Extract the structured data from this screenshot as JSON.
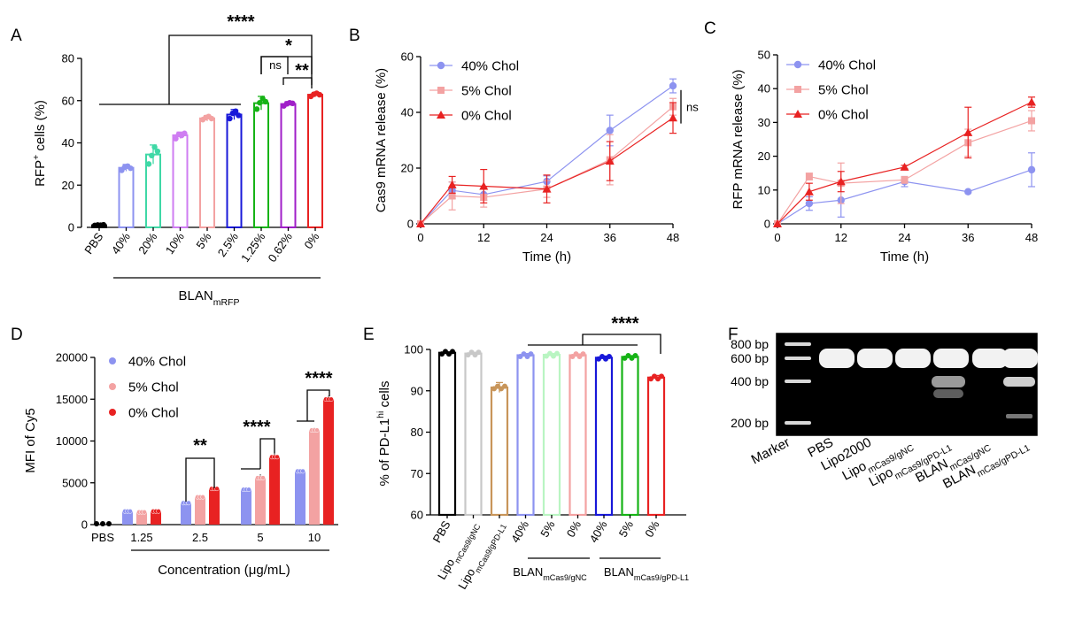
{
  "chart_data": [
    {
      "panel": "A",
      "type": "bar",
      "ylabel_main": "RFP",
      "ylabel_sup": "+",
      "ylabel_rest": " cells (%)",
      "ylim": [
        0,
        80
      ],
      "yticks": [
        0,
        20,
        40,
        60,
        80
      ],
      "categories": [
        "PBS",
        "40%",
        "20%",
        "10%",
        "5%",
        "2.5%",
        "1.25%",
        "0.62%",
        "0%"
      ],
      "values": [
        1.0,
        28.2,
        34.5,
        43.6,
        51.6,
        53.4,
        58.8,
        58.4,
        62.8
      ],
      "errors": [
        0.4,
        1.6,
        4.5,
        1.5,
        1.3,
        2.4,
        3.2,
        1.1,
        1.0
      ],
      "colors": [
        "#000000",
        "#8d93f0",
        "#3fd8a6",
        "#cf7df2",
        "#f3a2a2",
        "#1818d9",
        "#16b316",
        "#a01fc8",
        "#e82222"
      ],
      "points": [
        [
          0.9,
          1.1,
          1.0,
          1.2
        ],
        [
          27,
          28.5,
          29,
          28
        ],
        [
          30,
          34,
          38,
          36
        ],
        [
          42,
          44,
          43.5,
          44.5
        ],
        [
          51,
          52,
          52.5,
          51.5
        ],
        [
          51.5,
          54,
          55,
          53
        ],
        [
          56,
          59,
          61,
          59.5
        ],
        [
          57.5,
          58.5,
          59,
          58.7
        ],
        [
          62,
          63,
          63.5,
          62.8
        ]
      ],
      "group_label_main": "BLAN",
      "group_label_sub": "mRFP",
      "significance": [
        "****",
        "*",
        "**",
        "ns"
      ]
    },
    {
      "panel": "B",
      "type": "line",
      "ylabel": "Cas9 mRNA release (%)",
      "xlabel": "Time (h)",
      "xlim": [
        0,
        48
      ],
      "ylim": [
        0,
        60
      ],
      "xticks": [
        0,
        12,
        24,
        36,
        48
      ],
      "yticks": [
        0,
        20,
        40,
        60
      ],
      "x": [
        0,
        6,
        12,
        24,
        36,
        48
      ],
      "series": [
        {
          "name": "40% Chol",
          "color": "#8d93f0",
          "marker": "circle",
          "values": [
            0,
            12,
            10.5,
            15.2,
            33.5,
            49.5
          ],
          "errors": [
            0,
            3,
            2,
            2,
            5.5,
            2.5
          ]
        },
        {
          "name": "5% Chol",
          "color": "#f3a2a2",
          "marker": "square",
          "values": [
            0,
            10,
            9.5,
            12.5,
            23,
            42
          ],
          "errors": [
            0,
            5,
            3.5,
            3,
            9,
            3
          ]
        },
        {
          "name": "0% Chol",
          "color": "#e82222",
          "marker": "triangle",
          "values": [
            0,
            14,
            13.5,
            12.5,
            22.5,
            38
          ],
          "errors": [
            0,
            3,
            6,
            5,
            7,
            5.5
          ]
        }
      ],
      "annotation": "ns"
    },
    {
      "panel": "C",
      "type": "line",
      "ylabel": "RFP mRNA release (%)",
      "xlabel": "Time (h)",
      "xlim": [
        0,
        48
      ],
      "ylim": [
        0,
        50
      ],
      "xticks": [
        0,
        12,
        24,
        36,
        48
      ],
      "yticks": [
        0,
        10,
        20,
        30,
        40,
        50
      ],
      "x": [
        0,
        6,
        12,
        24,
        36,
        48
      ],
      "series": [
        {
          "name": "40% Chol",
          "color": "#8d93f0",
          "marker": "circle",
          "values": [
            0,
            6,
            7,
            12.5,
            9.5,
            16
          ],
          "errors": [
            0,
            2,
            5,
            1.5,
            0,
            5
          ]
        },
        {
          "name": "5% Chol",
          "color": "#f3a2a2",
          "marker": "square",
          "values": [
            0,
            14,
            12,
            13,
            24,
            30.5
          ],
          "errors": [
            0,
            1,
            6,
            1,
            4,
            3
          ]
        },
        {
          "name": "0% Chol",
          "color": "#e82222",
          "marker": "triangle",
          "values": [
            0,
            9.5,
            12.5,
            16.8,
            27,
            36
          ],
          "errors": [
            0,
            2.5,
            3,
            0.5,
            7.5,
            1.5
          ]
        }
      ]
    },
    {
      "panel": "D",
      "type": "bar",
      "ylabel": "MFI of Cy5",
      "xlabel": "Concentration (μg/mL)",
      "ylim": [
        0,
        20000
      ],
      "yticks": [
        0,
        5000,
        10000,
        15000,
        20000
      ],
      "categories": [
        "PBS",
        "1.25",
        "2.5",
        "5",
        "10"
      ],
      "series": [
        {
          "name": "40% Chol",
          "color": "#8d93f0",
          "values": [
            null,
            1600,
            2600,
            4200,
            6400
          ],
          "errors": [
            null,
            150,
            200,
            200,
            150
          ]
        },
        {
          "name": "5% Chol",
          "color": "#f3a2a2",
          "values": [
            null,
            1500,
            3300,
            5600,
            11300
          ],
          "errors": [
            null,
            150,
            150,
            400,
            300
          ]
        },
        {
          "name": "0% Chol",
          "color": "#e82222",
          "values": [
            null,
            1600,
            4300,
            8100,
            15000
          ],
          "errors": [
            null,
            150,
            100,
            500,
            400
          ]
        }
      ],
      "pbs_value": 100,
      "significance": [
        "**",
        "****",
        "****"
      ]
    },
    {
      "panel": "E",
      "type": "bar",
      "ylabel_main": "% of PD-L1",
      "ylabel_sup": "hi",
      "ylabel_rest": " cells",
      "ylim": [
        60,
        100
      ],
      "yticks": [
        60,
        70,
        80,
        90,
        100
      ],
      "categories": [
        "PBS",
        "Lipo_mCas9/gNC",
        "Lipo_mCas9/gPD-L1",
        "40%",
        "5%",
        "0%",
        "40%",
        "5%",
        "0%"
      ],
      "values": [
        99.2,
        99.0,
        90.8,
        98.6,
        98.7,
        98.6,
        98.0,
        98.2,
        93.2
      ],
      "errors": [
        0.2,
        0.3,
        1.2,
        0.4,
        0.3,
        0.3,
        0.4,
        0.3,
        0.5
      ],
      "colors": [
        "#000000",
        "#c8c8c8",
        "#c8955a",
        "#8d93f0",
        "#b9f5c2",
        "#f3a2a2",
        "#1818d9",
        "#16b316",
        "#e82222"
      ],
      "xlab1_main": "Lipo",
      "xlab1_sub": "mCas9/gNC",
      "xlab2_main": "Lipo",
      "xlab2_sub": "mCas9/gPD-L1",
      "group1_main": "BLAN",
      "group1_sub": "mCas9/gNC",
      "group2_main": "BLAN",
      "group2_sub": "mCas9/gPD-L1",
      "significance": [
        "****"
      ]
    },
    {
      "panel": "F",
      "type": "gel",
      "ladder": [
        "800 bp",
        "600 bp",
        "400 bp",
        "200 bp"
      ],
      "lanes": [
        {
          "main": "Marker",
          "sub": ""
        },
        {
          "main": "PBS",
          "sub": ""
        },
        {
          "main": "Lipo2000",
          "sub": ""
        },
        {
          "main": "Lipo",
          "sub": "mCas9/gNC"
        },
        {
          "main": "Lipo",
          "sub": "mCas9/gPD-L1"
        },
        {
          "main": "BLAN",
          "sub": "mCas/gNC"
        },
        {
          "main": "BLAN",
          "sub": "mCas/gPD-L1"
        }
      ]
    }
  ]
}
